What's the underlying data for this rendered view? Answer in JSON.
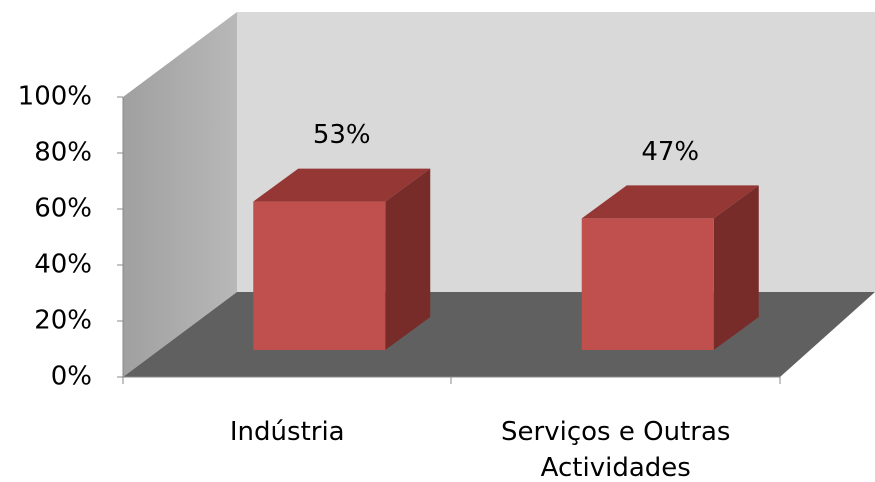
{
  "chart_data": {
    "type": "bar3d",
    "categories": [
      "Indústria",
      "Serviços e Outras Actividades"
    ],
    "values": [
      53,
      47
    ],
    "value_labels": [
      "53%",
      "47%"
    ],
    "color": "#c0504d",
    "ylim": [
      0,
      100
    ],
    "yticks": [
      {
        "value": 0,
        "label": "0%"
      },
      {
        "value": 20,
        "label": "20%"
      },
      {
        "value": 40,
        "label": "40%"
      },
      {
        "value": 60,
        "label": "60%"
      },
      {
        "value": 80,
        "label": "80%"
      },
      {
        "value": 100,
        "label": "100%"
      }
    ]
  }
}
